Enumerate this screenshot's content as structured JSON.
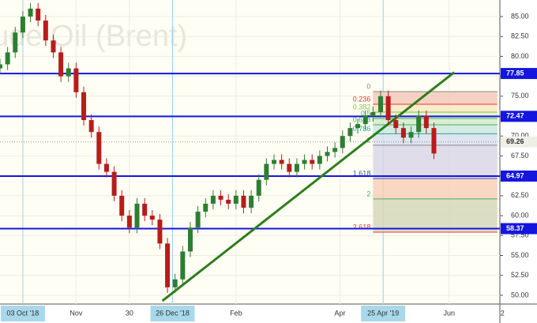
{
  "chart_data": {
    "type": "candlestick",
    "watermark": "Crude Oil (Brent)",
    "x": [
      0,
      3,
      6,
      9,
      12,
      15,
      18,
      21,
      24,
      27,
      30,
      33,
      36,
      39,
      42,
      45,
      48,
      51,
      54,
      57,
      60,
      63,
      66,
      69,
      72,
      75,
      78,
      81,
      84,
      87,
      90,
      93,
      96,
      99,
      102,
      105,
      108,
      111,
      114,
      117,
      120,
      123,
      126,
      129,
      132,
      135,
      138,
      141,
      144,
      147,
      150,
      153,
      156,
      159,
      162,
      165,
      168,
      171
    ],
    "open": [
      78.5,
      79.0,
      80.5,
      83.0,
      85.0,
      86.0,
      84.5,
      82.0,
      80.5,
      77.5,
      78.5,
      75.5,
      72.0,
      70.5,
      66.5,
      65.5,
      62.5,
      60.0,
      58.5,
      61.5,
      60.0,
      59.5,
      56.5,
      51.0,
      52.0,
      55.5,
      58.5,
      60.5,
      61.5,
      62.5,
      62.0,
      61.5,
      62.5,
      61.0,
      62.5,
      64.5,
      66.5,
      67.0,
      66.5,
      65.5,
      66.5,
      67.0,
      66.5,
      67.5,
      68.0,
      68.5,
      70.0,
      71.0,
      71.5,
      72.5,
      73.0,
      75.0,
      72.0,
      71.0,
      69.8,
      70.5,
      72.5,
      71.0
    ],
    "high": [
      79.7,
      81.2,
      83.7,
      85.7,
      86.7,
      86.7,
      85.2,
      82.7,
      81.2,
      79.2,
      79.2,
      76.2,
      72.7,
      71.2,
      67.2,
      66.2,
      63.2,
      60.7,
      62.2,
      62.2,
      60.7,
      60.2,
      57.2,
      52.7,
      56.2,
      59.2,
      61.2,
      62.2,
      63.2,
      63.2,
      62.7,
      63.2,
      63.2,
      63.2,
      65.2,
      67.2,
      67.7,
      67.7,
      67.2,
      67.2,
      67.7,
      67.7,
      68.2,
      68.7,
      69.2,
      70.7,
      71.7,
      72.2,
      73.2,
      73.7,
      75.7,
      75.7,
      72.7,
      71.7,
      71.2,
      73.2,
      73.2,
      71.7
    ],
    "low": [
      77.8,
      78.3,
      79.8,
      82.3,
      84.3,
      83.8,
      81.3,
      79.8,
      76.8,
      76.8,
      74.8,
      71.3,
      69.8,
      65.8,
      64.8,
      61.8,
      59.3,
      57.8,
      57.8,
      59.3,
      58.8,
      55.8,
      50.3,
      50.3,
      51.3,
      54.8,
      57.8,
      59.8,
      60.8,
      61.3,
      60.8,
      60.8,
      60.3,
      60.3,
      61.8,
      63.8,
      65.8,
      65.8,
      64.8,
      64.8,
      65.8,
      65.8,
      65.8,
      66.8,
      67.3,
      67.8,
      69.3,
      70.3,
      70.8,
      71.8,
      72.3,
      71.3,
      70.3,
      69.1,
      69.1,
      69.8,
      70.3,
      67.1
    ],
    "close": [
      79.0,
      80.5,
      83.0,
      85.0,
      86.0,
      84.5,
      82.0,
      80.5,
      77.5,
      78.5,
      75.5,
      72.0,
      70.5,
      66.5,
      65.5,
      62.5,
      60.0,
      58.5,
      61.5,
      60.0,
      59.5,
      56.5,
      51.0,
      52.0,
      55.5,
      58.5,
      60.5,
      61.5,
      62.5,
      62.0,
      61.5,
      62.5,
      61.0,
      62.5,
      64.5,
      66.5,
      67.0,
      66.5,
      65.5,
      66.5,
      67.0,
      66.5,
      67.5,
      68.0,
      68.5,
      70.0,
      71.0,
      71.5,
      72.5,
      73.0,
      75.0,
      72.0,
      71.0,
      69.8,
      70.5,
      72.5,
      71.0,
      67.8
    ],
    "up_color": "#2e7d32",
    "down_color": "#b71c1c",
    "xlim": [
      0,
      197
    ],
    "xticks": [
      {
        "value": 9,
        "label": "03 Oct '18"
      },
      {
        "value": 30,
        "label": "Nov"
      },
      {
        "value": 51,
        "label": "30"
      },
      {
        "value": 68,
        "label": "26 Dec '18"
      },
      {
        "value": 93,
        "label": "Feb"
      },
      {
        "value": 134,
        "label": "Apr"
      },
      {
        "value": 151,
        "label": "25 Apr '19"
      },
      {
        "value": 177,
        "label": "Jun"
      },
      {
        "value": 198,
        "label": "2"
      }
    ],
    "vertical_markers": [
      9,
      68,
      151
    ],
    "ylim": [
      48.9,
      87.08
    ],
    "yticks": [
      {
        "value": 50,
        "label": "50.00"
      },
      {
        "value": 52.5,
        "label": "52.50"
      },
      {
        "value": 55,
        "label": "55.00"
      },
      {
        "value": 57.5,
        "label": "57.50"
      },
      {
        "value": 60,
        "label": "60.00"
      },
      {
        "value": 62.5,
        "label": "62.50"
      },
      {
        "value": 65,
        "label": "65.00"
      },
      {
        "value": 67.5,
        "label": "67.50"
      },
      {
        "value": 70,
        "label": "70.00"
      },
      {
        "value": 72.5,
        "label": "72.50"
      },
      {
        "value": 75,
        "label": "75.00"
      },
      {
        "value": 77.5,
        "label": "77.50"
      },
      {
        "value": 80,
        "label": "80.00"
      },
      {
        "value": 82.5,
        "label": "82.50"
      },
      {
        "value": 85,
        "label": "85.00"
      }
    ],
    "grid": true,
    "levels": [
      77.85,
      72.47,
      64.97,
      58.37
    ],
    "level_color": "#1515e0",
    "last_price": 69.26,
    "trendline": {
      "x": [
        64,
        179
      ],
      "y": [
        49.3,
        78.0
      ],
      "color": "#2e7d1a"
    },
    "fib": {
      "x": [
        147,
        196
      ],
      "ratios": [
        0,
        0.236,
        0.382,
        0.5,
        0.618,
        0.786,
        1,
        1.618,
        2,
        2.618
      ],
      "prices": [
        75.58,
        73.99,
        73.0,
        72.21,
        71.41,
        70.28,
        68.84,
        64.67,
        62.1,
        57.93
      ],
      "colors": [
        "#888888",
        "#e53935",
        "#8bc34a",
        "#4caf50",
        "#4caf50",
        "#26a69a",
        "#888888",
        "#3f51b5",
        "#4caf50",
        "#e53935"
      ],
      "fills": [
        "#f4c7b8",
        "#f8e6c0",
        "#dff0c4",
        "#cfe8cf",
        "#c8e6e0",
        "#d6dff0",
        "#d8d4e8",
        "#f6cdb7",
        "#d3d6b8"
      ]
    }
  }
}
